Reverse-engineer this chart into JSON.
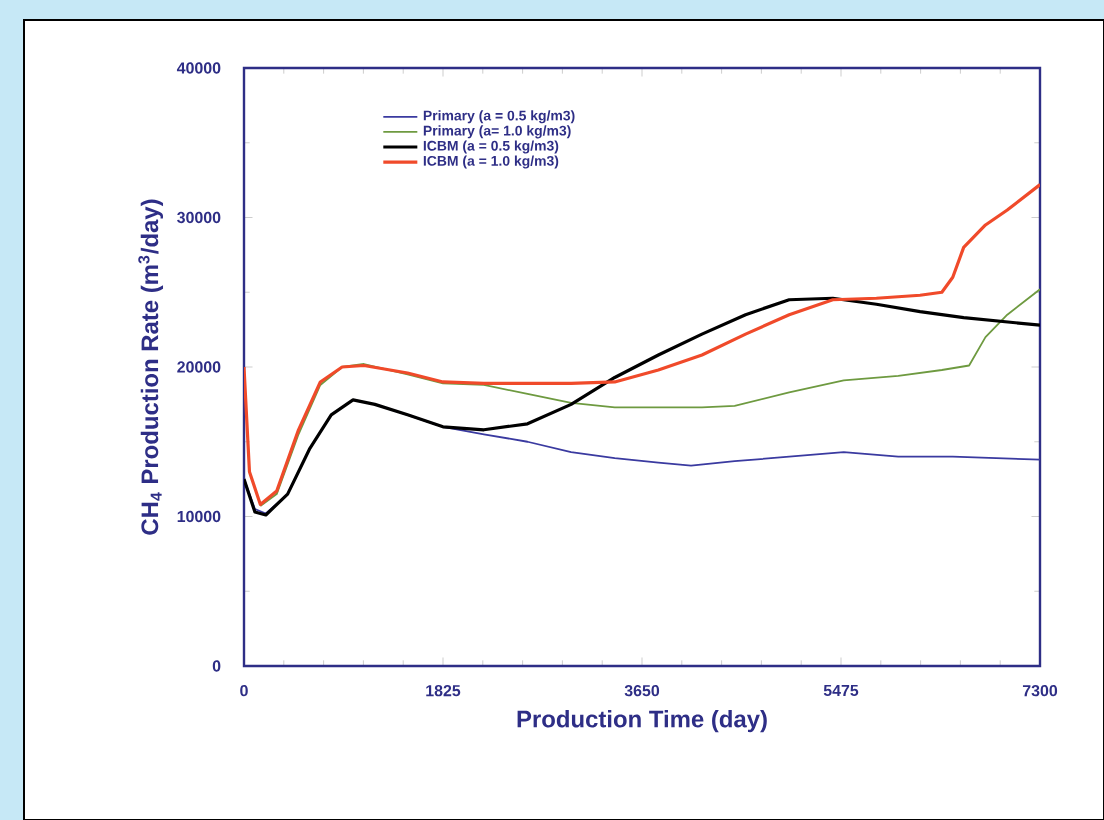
{
  "chart_data": {
    "type": "line",
    "xlabel": "Production Time (day)",
    "ylabel": "CH$_{4}$ Production Rate (m$^{3}$/day)",
    "xlim": [
      0,
      7300
    ],
    "ylim": [
      0,
      40000
    ],
    "xticks": [
      0,
      1825,
      3650,
      5475,
      7300
    ],
    "yticks": [
      0,
      10000,
      20000,
      30000,
      40000
    ],
    "grid": false,
    "legend": "top",
    "marker": "none",
    "line_style": "solid",
    "series": [
      {
        "name": "Primary (a = 0.5 kg/m3)",
        "color": "#3a3aa0",
        "x": [
          0,
          100,
          200,
          400,
          600,
          800,
          1000,
          1200,
          1500,
          1825,
          2200,
          2600,
          3000,
          3400,
          3800,
          4100,
          4500,
          5000,
          5500,
          6000,
          6500,
          7300
        ],
        "values": [
          12500,
          10500,
          10200,
          11500,
          14500,
          16800,
          17800,
          17500,
          16800,
          16000,
          15500,
          15000,
          14300,
          13900,
          13600,
          13400,
          13700,
          14000,
          14300,
          14000,
          14000,
          13800
        ]
      },
      {
        "name": "Primary (a= 1.0 kg/m3)",
        "color": "#6e9a40",
        "x": [
          150,
          300,
          500,
          700,
          900,
          1100,
          1500,
          1825,
          2200,
          2600,
          3000,
          3400,
          3800,
          4200,
          4500,
          5000,
          5500,
          6000,
          6400,
          6650,
          6800,
          7000,
          7300
        ],
        "values": [
          10700,
          11500,
          15500,
          18800,
          20000,
          20200,
          19500,
          18900,
          18800,
          18200,
          17600,
          17300,
          17300,
          17300,
          17400,
          18300,
          19100,
          19400,
          19800,
          20100,
          22000,
          23500,
          25200
        ]
      },
      {
        "name": "ICBM (a = 0.5 kg/m3)",
        "color": "#000000",
        "x": [
          0,
          100,
          200,
          400,
          600,
          800,
          1000,
          1200,
          1500,
          1825,
          2200,
          2600,
          3000,
          3400,
          3800,
          4200,
          4600,
          5000,
          5400,
          5800,
          6200,
          6600,
          7300
        ],
        "values": [
          12500,
          10300,
          10100,
          11500,
          14500,
          16800,
          17800,
          17500,
          16800,
          16000,
          15800,
          16200,
          17500,
          19300,
          20800,
          22200,
          23500,
          24500,
          24600,
          24200,
          23700,
          23300,
          22800
        ]
      },
      {
        "name": "ICBM (a = 1.0 kg/m3)",
        "color": "#f04a2a",
        "x": [
          0,
          50,
          150,
          300,
          500,
          700,
          900,
          1100,
          1500,
          1825,
          2200,
          2600,
          3000,
          3400,
          3800,
          4200,
          4600,
          5000,
          5400,
          5800,
          6200,
          6400,
          6500,
          6600,
          6800,
          7000,
          7300
        ],
        "values": [
          20000,
          13000,
          10800,
          11700,
          15800,
          19000,
          20000,
          20100,
          19600,
          19000,
          18900,
          18900,
          18900,
          19000,
          19800,
          20800,
          22200,
          23500,
          24500,
          24600,
          24800,
          25000,
          26000,
          28000,
          29500,
          30500,
          32200
        ]
      }
    ]
  }
}
